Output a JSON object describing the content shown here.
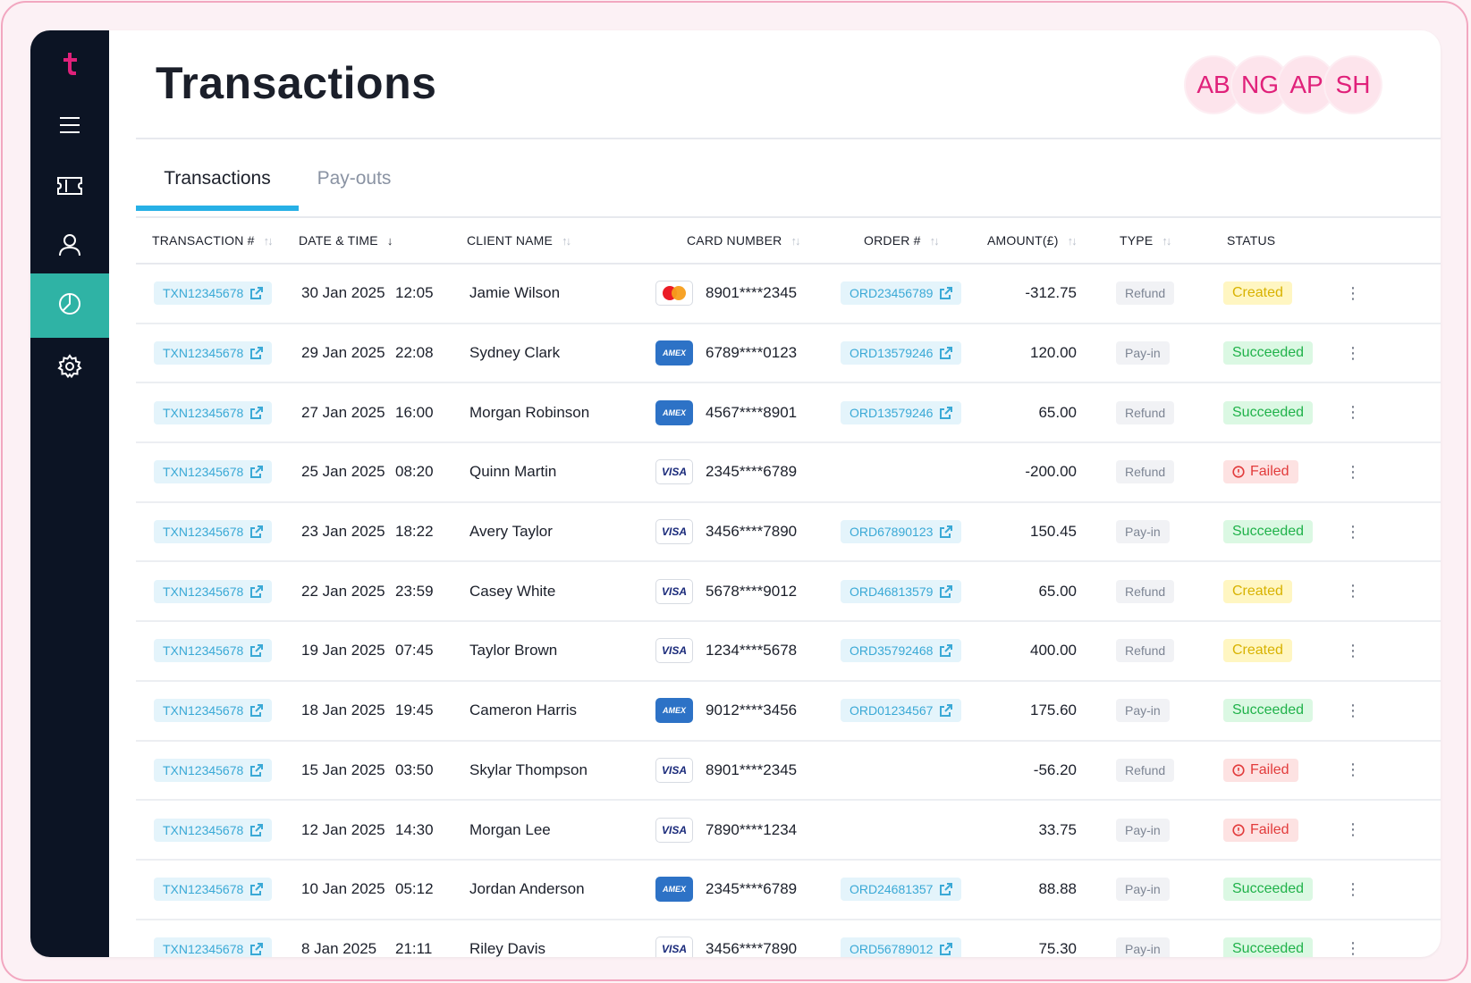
{
  "app": {
    "title": "Transactions",
    "avatars": [
      "AB",
      "NG",
      "AP",
      "SH"
    ]
  },
  "sidebar": {
    "items": [
      {
        "icon": "menu-icon"
      },
      {
        "icon": "ticket-icon"
      },
      {
        "icon": "user-icon"
      },
      {
        "icon": "pie-chart-icon",
        "active": true
      },
      {
        "icon": "gear-icon"
      }
    ]
  },
  "tabs": [
    {
      "label": "Transactions",
      "active": true
    },
    {
      "label": "Pay-outs",
      "active": false
    }
  ],
  "table": {
    "columns": [
      "TRANSACTION #",
      "DATE & TIME",
      "CLIENT NAME",
      "CARD NUMBER",
      "ORDER #",
      "AMOUNT(£)",
      "TYPE",
      "STATUS"
    ],
    "rows": [
      {
        "txn": "TXN12345678",
        "date": "30 Jan 2025",
        "time": "12:05",
        "client": "Jamie Wilson",
        "card_type": "mastercard",
        "card": "8901****2345",
        "order": "ORD23456789",
        "amount": "-312.75",
        "type": "Refund",
        "status": "Created"
      },
      {
        "txn": "TXN12345678",
        "date": "29 Jan 2025",
        "time": "22:08",
        "client": "Sydney Clark",
        "card_type": "amex",
        "card": "6789****0123",
        "order": "ORD13579246",
        "amount": "120.00",
        "type": "Pay-in",
        "status": "Succeeded"
      },
      {
        "txn": "TXN12345678",
        "date": "27 Jan 2025",
        "time": "16:00",
        "client": "Morgan Robinson",
        "card_type": "amex",
        "card": "4567****8901",
        "order": "ORD13579246",
        "amount": "65.00",
        "type": "Refund",
        "status": "Succeeded"
      },
      {
        "txn": "TXN12345678",
        "date": "25 Jan 2025",
        "time": "08:20",
        "client": "Quinn Martin",
        "card_type": "visa",
        "card": "2345****6789",
        "order": "",
        "amount": "-200.00",
        "type": "Refund",
        "status": "Failed"
      },
      {
        "txn": "TXN12345678",
        "date": "23 Jan 2025",
        "time": "18:22",
        "client": "Avery Taylor",
        "card_type": "visa",
        "card": "3456****7890",
        "order": "ORD67890123",
        "amount": "150.45",
        "type": "Pay-in",
        "status": "Succeeded"
      },
      {
        "txn": "TXN12345678",
        "date": "22 Jan 2025",
        "time": "23:59",
        "client": "Casey White",
        "card_type": "visa",
        "card": "5678****9012",
        "order": "ORD46813579",
        "amount": "65.00",
        "type": "Refund",
        "status": "Created"
      },
      {
        "txn": "TXN12345678",
        "date": "19 Jan 2025",
        "time": "07:45",
        "client": "Taylor Brown",
        "card_type": "visa",
        "card": "1234****5678",
        "order": "ORD35792468",
        "amount": "400.00",
        "type": "Refund",
        "status": "Created"
      },
      {
        "txn": "TXN12345678",
        "date": "18 Jan 2025",
        "time": "19:45",
        "client": "Cameron Harris",
        "card_type": "amex",
        "card": "9012****3456",
        "order": "ORD01234567",
        "amount": "175.60",
        "type": "Pay-in",
        "status": "Succeeded"
      },
      {
        "txn": "TXN12345678",
        "date": "15 Jan 2025",
        "time": "03:50",
        "client": "Skylar Thompson",
        "card_type": "visa",
        "card": "8901****2345",
        "order": "",
        "amount": "-56.20",
        "type": "Refund",
        "status": "Failed"
      },
      {
        "txn": "TXN12345678",
        "date": "12 Jan 2025",
        "time": "14:30",
        "client": "Morgan Lee",
        "card_type": "visa",
        "card": "7890****1234",
        "order": "",
        "amount": "33.75",
        "type": "Pay-in",
        "status": "Failed"
      },
      {
        "txn": "TXN12345678",
        "date": "10 Jan 2025",
        "time": "05:12",
        "client": "Jordan Anderson",
        "card_type": "amex",
        "card": "2345****6789",
        "order": "ORD24681357",
        "amount": "88.88",
        "type": "Pay-in",
        "status": "Succeeded"
      },
      {
        "txn": "TXN12345678",
        "date": "8 Jan 2025",
        "time": "21:11",
        "client": "Riley Davis",
        "card_type": "visa",
        "card": "3456****7890",
        "order": "ORD56789012",
        "amount": "75.30",
        "type": "Pay-in",
        "status": "Succeeded"
      }
    ]
  },
  "card_labels": {
    "visa": "VISA",
    "amex": "AMEX"
  },
  "colors": {
    "brand": "#e0217a",
    "accent": "#27b0e6",
    "sidebar": "#0c1424",
    "sidebar_active": "#2fb3a5"
  }
}
